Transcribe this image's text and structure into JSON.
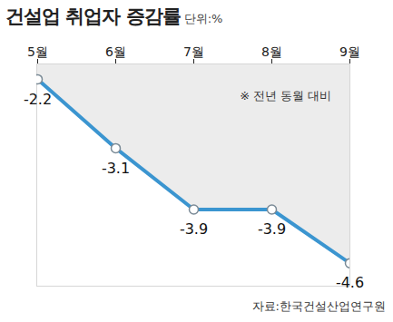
{
  "chart_data": {
    "type": "line",
    "title": "건설업 취업자 증감률",
    "subtitle": "단위:%",
    "annotation": "※ 전년 동월 대비",
    "source": "자료:한국건설산업연구원",
    "categories": [
      "5월",
      "6월",
      "7월",
      "8월",
      "9월"
    ],
    "values": [
      -2.2,
      -3.1,
      -3.9,
      -3.9,
      -4.6
    ],
    "color": "#3b95d0",
    "marker": "circle",
    "ylim": [
      -4.9,
      -2.0
    ],
    "yticks": [],
    "grid": false,
    "data_labels": true,
    "tick_labels": "x"
  }
}
